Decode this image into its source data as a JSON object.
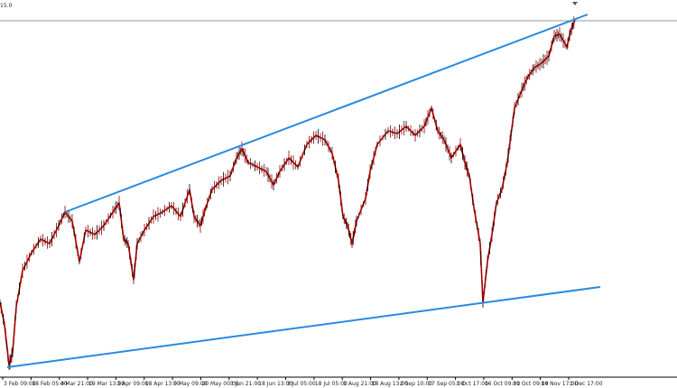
{
  "corner_label": "15.0",
  "time_axis": [
    "3 Feb 09:00",
    "18 Feb 05:00",
    "4 Mar 21:00",
    "19 Mar 13:00",
    "3 Apr 09:00",
    "18 Apr 13:00",
    "5 May 09:00",
    "20 May 00:00",
    "3 Jun 21:00",
    "18 Jun 13:00",
    "3 Jul 05:00",
    "18 Jul 05:00",
    "1 Aug 21:00",
    "18 Aug 13:00",
    "2 Sep 10:00",
    "17 Sep 05:00",
    "1 Oct 17:00",
    "16 Oct 09:00",
    "31 Oct 09:00",
    "14 Nov 17:00",
    "1 Dec 17:00"
  ]
}
